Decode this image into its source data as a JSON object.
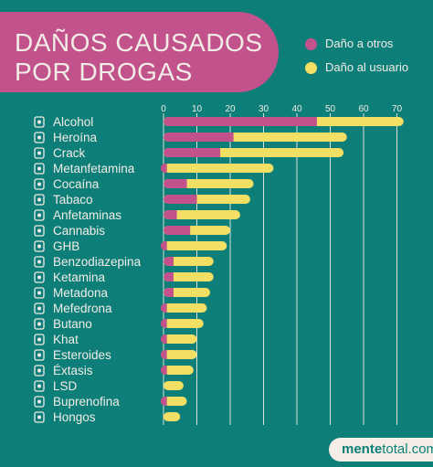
{
  "title": {
    "line1": "DAÑOS CAUSADOS",
    "line2": "POR DROGAS"
  },
  "legend": [
    {
      "label": "Daño a otros",
      "color": "#c2528c"
    },
    {
      "label": "Daño al usuario",
      "color": "#f3df63"
    }
  ],
  "brand": {
    "bold": "mente",
    "rest": "total.com"
  },
  "colors": {
    "background": "#0e7f78",
    "grid": "#f2ece6"
  },
  "chart_data": {
    "type": "bar",
    "orientation": "horizontal",
    "stacked": true,
    "xlim": [
      0,
      70
    ],
    "x_ticks": [
      0,
      10,
      20,
      30,
      40,
      50,
      60,
      70
    ],
    "grid": true,
    "legend_position": "top-right",
    "categories": [
      "Alcohol",
      "Heroína",
      "Crack",
      "Metanfetamina",
      "Cocaína",
      "Tabaco",
      "Anfetaminas",
      "Cannabis",
      "GHB",
      "Benzodiazepina",
      "Ketamina",
      "Metadona",
      "Mefedrona",
      "Butano",
      "Khat",
      "Esteroides",
      "Éxtasis",
      "LSD",
      "Buprenofina",
      "Hongos"
    ],
    "icons": [
      "bottle-icon",
      "syringe-icon",
      "pipe-icon",
      "crystal-icon",
      "powder-icon",
      "cigarette-icon",
      "pills-icon",
      "leaf-icon",
      "vial-icon",
      "blister-icon",
      "vial-icon",
      "medicine-bottle-icon",
      "flask-icon",
      "gas-can-icon",
      "leaf-icon",
      "syringe-icon",
      "tablet-icon",
      "blotter-icon",
      "pills-icon",
      "mushroom-icon"
    ],
    "series": [
      {
        "name": "Daño a otros",
        "color": "#c2528c",
        "values": [
          46,
          21,
          17,
          1,
          7,
          10,
          4,
          8,
          1,
          3,
          3,
          3,
          1,
          1,
          1,
          1,
          1,
          0,
          1,
          0
        ]
      },
      {
        "name": "Daño al usuario",
        "color": "#f3df63",
        "values": [
          26,
          34,
          37,
          32,
          20,
          16,
          19,
          12,
          18,
          12,
          12,
          11,
          12,
          11,
          9,
          9,
          8,
          6,
          6,
          5
        ]
      }
    ]
  }
}
